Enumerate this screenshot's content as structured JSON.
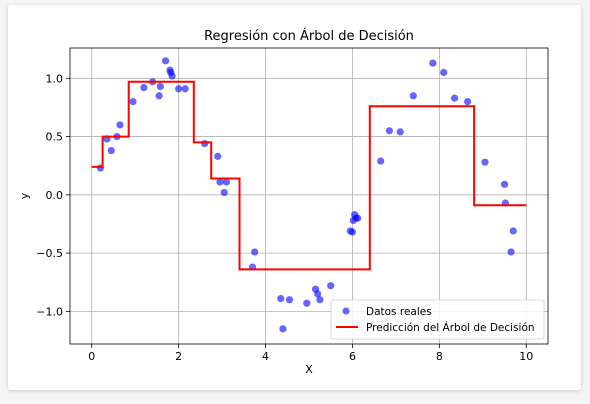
{
  "chart_data": {
    "type": "scatter",
    "title": "Regresión con Árbol de Decisión",
    "xlabel": "X",
    "ylabel": "y",
    "xlim": [
      -0.5,
      10.5
    ],
    "ylim": [
      -1.28,
      1.26
    ],
    "xticks": [
      0,
      2,
      4,
      6,
      8,
      10
    ],
    "xtick_labels": [
      "0",
      "2",
      "4",
      "6",
      "8",
      "10"
    ],
    "yticks": [
      -1.0,
      -0.5,
      0.0,
      0.5,
      1.0
    ],
    "ytick_labels": [
      "−1.0",
      "−0.5",
      "0.0",
      "0.5",
      "1.0"
    ],
    "grid": true,
    "legend_position": "lower-right",
    "series": [
      {
        "name": "Datos reales",
        "kind": "scatter",
        "color": "#0000ff",
        "x": [
          0.2,
          0.35,
          0.45,
          0.58,
          0.65,
          0.95,
          1.2,
          1.4,
          1.55,
          1.58,
          1.7,
          1.8,
          1.82,
          1.85,
          2.0,
          2.15,
          2.6,
          2.9,
          2.95,
          3.05,
          3.1,
          3.7,
          3.75,
          4.35,
          4.4,
          4.55,
          4.95,
          5.15,
          5.2,
          5.25,
          5.5,
          5.95,
          6.0,
          6.02,
          6.05,
          6.08,
          6.12,
          6.65,
          6.85,
          7.1,
          7.4,
          7.85,
          8.1,
          8.35,
          8.65,
          9.05,
          9.5,
          9.52,
          9.65,
          9.7
        ],
        "y": [
          0.23,
          0.48,
          0.38,
          0.5,
          0.6,
          0.8,
          0.92,
          0.97,
          0.85,
          0.93,
          1.15,
          1.07,
          1.05,
          1.02,
          0.91,
          0.91,
          0.44,
          0.33,
          0.11,
          0.02,
          0.11,
          -0.62,
          -0.49,
          -0.89,
          -1.15,
          -0.9,
          -0.93,
          -0.81,
          -0.85,
          -0.9,
          -0.78,
          -0.31,
          -0.32,
          -0.22,
          -0.17,
          -0.2,
          -0.2,
          0.29,
          0.55,
          0.54,
          0.85,
          1.13,
          1.05,
          0.83,
          0.8,
          0.28,
          0.09,
          -0.07,
          -0.49,
          -0.31
        ]
      },
      {
        "name": "Predicción del Árbol de Decisión",
        "kind": "step-line",
        "color": "#ff0000",
        "x": [
          0.0,
          0.25,
          0.25,
          0.85,
          0.85,
          2.35,
          2.35,
          2.75,
          2.75,
          3.4,
          3.4,
          6.4,
          6.4,
          8.8,
          8.8,
          10.0
        ],
        "y": [
          0.24,
          0.24,
          0.5,
          0.5,
          0.97,
          0.97,
          0.45,
          0.45,
          0.14,
          0.14,
          -0.64,
          -0.64,
          0.76,
          0.76,
          -0.09,
          -0.09
        ]
      }
    ]
  }
}
